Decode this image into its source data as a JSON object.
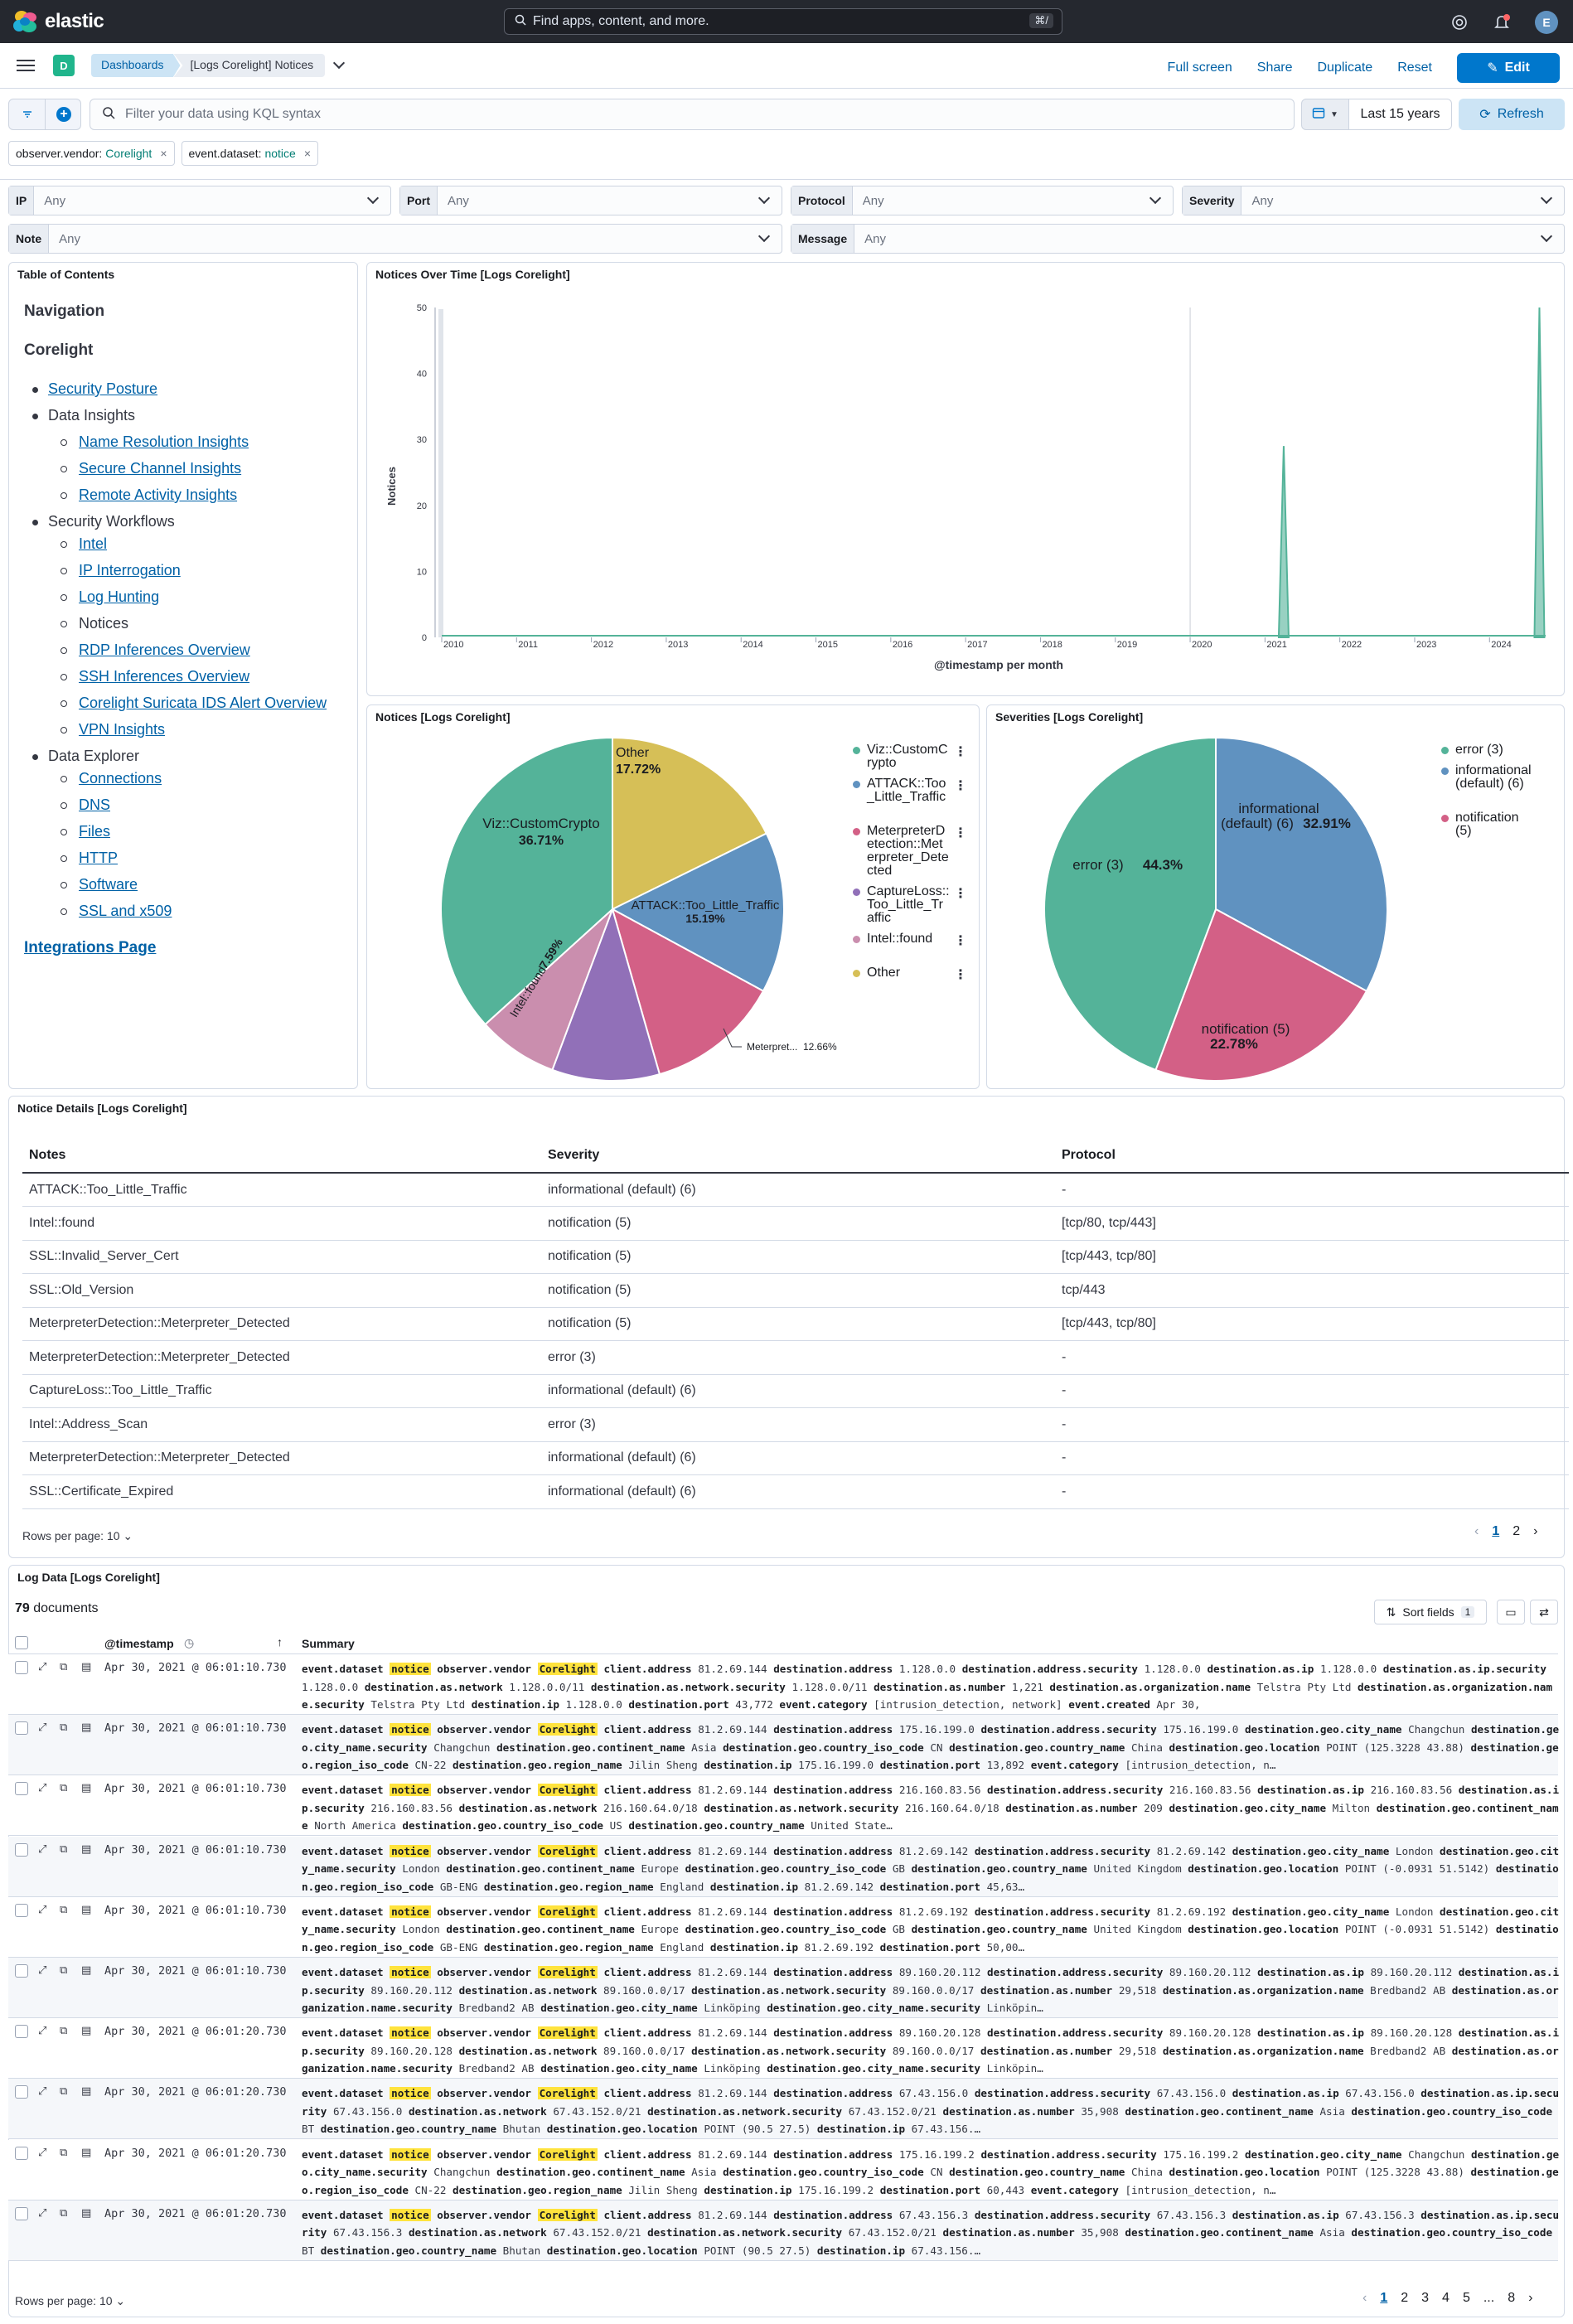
{
  "app": {
    "brand": "elastic",
    "search_placeholder": "Find apps, content, and more.",
    "search_shortcut": "⌘/",
    "avatar_initial": "E"
  },
  "header": {
    "space_badge": "D",
    "breadcrumbs": [
      "Dashboards",
      "[Logs Corelight] Notices"
    ],
    "actions": [
      "Full screen",
      "Share",
      "Duplicate",
      "Reset"
    ],
    "edit_label": "Edit"
  },
  "query": {
    "placeholder": "Filter your data using KQL syntax",
    "time_range": "Last 15 years",
    "refresh_label": "Refresh"
  },
  "filters": [
    {
      "field": "observer.vendor:",
      "value": "Corelight"
    },
    {
      "field": "event.dataset:",
      "value": "notice"
    }
  ],
  "controls": [
    {
      "label": "IP",
      "value": "Any"
    },
    {
      "label": "Port",
      "value": "Any"
    },
    {
      "label": "Protocol",
      "value": "Any"
    },
    {
      "label": "Severity",
      "value": "Any"
    },
    {
      "label": "Note",
      "value": "Any"
    },
    {
      "label": "Message",
      "value": "Any"
    }
  ],
  "toc": {
    "title": "Table of Contents",
    "heading1": "Navigation",
    "heading2": "Corelight",
    "security_posture": "Security Posture",
    "data_insights": "Data Insights",
    "data_insights_items": [
      "Name Resolution Insights",
      "Secure Channel Insights",
      "Remote Activity Insights"
    ],
    "security_workflows": "Security Workflows",
    "security_workflows_items": [
      "Intel",
      "IP Interrogation",
      "Log Hunting",
      "Notices",
      "RDP Inferences Overview",
      "SSH Inferences Overview",
      "Corelight Suricata IDS Alert Overview",
      "VPN Insights"
    ],
    "data_explorer": "Data Explorer",
    "data_explorer_items": [
      "Connections",
      "DNS",
      "Files",
      "HTTP",
      "Software",
      "SSL and x509"
    ],
    "integrations": "Integrations Page"
  },
  "chart_data": [
    {
      "type": "area",
      "title": "Notices Over Time [Logs Corelight]",
      "xlabel": "@timestamp per month",
      "ylabel": "Notices",
      "x_ticks": [
        "2010",
        "2011",
        "2012",
        "2013",
        "2014",
        "2015",
        "2016",
        "2017",
        "2018",
        "2019",
        "2020",
        "2021",
        "2022",
        "2023",
        "2024"
      ],
      "y_ticks": [
        0,
        10,
        20,
        30,
        40,
        50
      ],
      "ylim": [
        0,
        50
      ],
      "series": [
        {
          "x": [
            "2021-04",
            "2024-09"
          ],
          "values": [
            29,
            50
          ]
        }
      ],
      "color": "#54b399"
    },
    {
      "type": "pie",
      "title": "Notices [Logs Corelight]",
      "slices": [
        {
          "label": "Viz::CustomCrypto",
          "value": 36.71,
          "color": "#54b399"
        },
        {
          "label": "Other",
          "value": 17.72,
          "color": "#d6bf57"
        },
        {
          "label": "ATTACK::Too_Little_Traffic",
          "value": 15.19,
          "color": "#6092c0"
        },
        {
          "label": "MeterpreterDetection::Meterpreter_Detected",
          "value": 12.66,
          "color": "#d36086"
        },
        {
          "label": "CaptureLoss::Too_Little_Traffic",
          "value": 10.13,
          "color": "#9170b8"
        },
        {
          "label": "Intel::found",
          "value": 7.59,
          "color": "#ca8eae"
        }
      ],
      "slice_labels": {
        "custom": "Viz::CustomCrypto",
        "custom_pct": "36.71%",
        "other": "Other",
        "other_pct": "17.72%",
        "attack": "ATTACK::Too_Little_Traffic",
        "attack_pct": "15.19%",
        "intel": "Intel::found",
        "intel_pct": "7.59%",
        "meter": "Meterpret...",
        "meter_pct": "12.66%"
      },
      "legend": [
        "Viz::CustomCrypto",
        "ATTACK::Too_Little_Traffic",
        "MeterpreterDetection::Meterpreter_Detected",
        "CaptureLoss::Too_Little_Traffic",
        "Intel::found",
        "Other"
      ]
    },
    {
      "type": "pie",
      "title": "Severities [Logs Corelight]",
      "slices": [
        {
          "label": "error (3)",
          "value": 44.3,
          "color": "#54b399"
        },
        {
          "label": "informational (default) (6)",
          "value": 32.91,
          "color": "#6092c0"
        },
        {
          "label": "notification (5)",
          "value": 22.78,
          "color": "#d36086"
        }
      ],
      "slice_labels": {
        "error": "error (3)",
        "error_pct": "44.3%",
        "info1": "informational",
        "info2": "(default) (6)",
        "info_pct": "32.91%",
        "notif": "notification (5)",
        "notif_pct": "22.78%"
      },
      "legend": [
        "error (3)",
        "informational (default) (6)",
        "notification (5)"
      ]
    }
  ],
  "notice_details": {
    "title": "Notice Details [Logs Corelight]",
    "columns": [
      "Notes",
      "Severity",
      "Protocol"
    ],
    "rows": [
      [
        "ATTACK::Too_Little_Traffic",
        "informational (default) (6)",
        "-"
      ],
      [
        "Intel::found",
        "notification (5)",
        "[tcp/80, tcp/443]"
      ],
      [
        "SSL::Invalid_Server_Cert",
        "notification (5)",
        "[tcp/443, tcp/80]"
      ],
      [
        "SSL::Old_Version",
        "notification (5)",
        "tcp/443"
      ],
      [
        "MeterpreterDetection::Meterpreter_Detected",
        "notification (5)",
        "[tcp/443, tcp/80]"
      ],
      [
        "MeterpreterDetection::Meterpreter_Detected",
        "error (3)",
        "-"
      ],
      [
        "CaptureLoss::Too_Little_Traffic",
        "informational (default) (6)",
        "-"
      ],
      [
        "Intel::Address_Scan",
        "error (3)",
        "-"
      ],
      [
        "MeterpreterDetection::Meterpreter_Detected",
        "informational (default) (6)",
        "-"
      ],
      [
        "SSL::Certificate_Expired",
        "informational (default) (6)",
        "-"
      ]
    ],
    "rows_per_page": "Rows per page: 10",
    "pages": [
      "1",
      "2"
    ]
  },
  "log_data": {
    "title": "Log Data [Logs Corelight]",
    "doc_count": "79",
    "doc_label": "documents",
    "sort_label": "Sort fields",
    "sort_count": "1",
    "col_timestamp": "@timestamp",
    "col_summary": "Summary",
    "rows_per_page": "Rows per page: 10",
    "pages": [
      "1",
      "2",
      "3",
      "4",
      "5",
      "...",
      "8"
    ],
    "rows": [
      {
        "ts": "Apr 30, 2021 @ 06:01:10.730",
        "summary": "event.dataset notice observer.vendor Corelight client.address 81.2.69.144 destination.address 1.128.0.0 destination.address.security 1.128.0.0 destination.as.ip 1.128.0.0 destination.as.ip.security 1.128.0.0 destination.as.network 1.128.0.0/11 destination.as.network.security 1.128.0.0/11 destination.as.number 1,221 destination.as.organization.name Telstra Pty Ltd destination.as.organization.name.security Telstra Pty Ltd destination.ip 1.128.0.0 destination.port 43,772 event.category [intrusion_detection, network] event.created Apr 30,"
      },
      {
        "ts": "Apr 30, 2021 @ 06:01:10.730",
        "summary": "event.dataset notice observer.vendor Corelight client.address 81.2.69.144 destination.address 175.16.199.0 destination.address.security 175.16.199.0 destination.geo.city_name Changchun destination.geo.city_name.security Changchun destination.geo.continent_name Asia destination.geo.country_iso_code CN destination.geo.country_name China destination.geo.location POINT (125.3228 43.88) destination.geo.region_iso_code CN-22 destination.geo.region_name Jilin Sheng destination.ip 175.16.199.0 destination.port 13,892 event.category [intrusion_detection, n…"
      },
      {
        "ts": "Apr 30, 2021 @ 06:01:10.730",
        "summary": "event.dataset notice observer.vendor Corelight client.address 81.2.69.144 destination.address 216.160.83.56 destination.address.security 216.160.83.56 destination.as.ip 216.160.83.56 destination.as.ip.security 216.160.83.56 destination.as.network 216.160.64.0/18 destination.as.network.security 216.160.64.0/18 destination.as.number 209 destination.geo.city_name Milton destination.geo.continent_name North America destination.geo.country_iso_code US destination.geo.country_name United State…"
      },
      {
        "ts": "Apr 30, 2021 @ 06:01:10.730",
        "summary": "event.dataset notice observer.vendor Corelight client.address 81.2.69.144 destination.address 81.2.69.142 destination.address.security 81.2.69.142 destination.geo.city_name London destination.geo.city_name.security London destination.geo.continent_name Europe destination.geo.country_iso_code GB destination.geo.country_name United Kingdom destination.geo.location POINT (-0.0931 51.5142) destination.geo.region_iso_code GB-ENG destination.geo.region_name England destination.ip 81.2.69.142 destination.port 45,63…"
      },
      {
        "ts": "Apr 30, 2021 @ 06:01:10.730",
        "summary": "event.dataset notice observer.vendor Corelight client.address 81.2.69.144 destination.address 81.2.69.192 destination.address.security 81.2.69.192 destination.geo.city_name London destination.geo.city_name.security London destination.geo.continent_name Europe destination.geo.country_iso_code GB destination.geo.country_name United Kingdom destination.geo.location POINT (-0.0931 51.5142) destination.geo.region_iso_code GB-ENG destination.geo.region_name England destination.ip 81.2.69.192 destination.port 50,00…"
      },
      {
        "ts": "Apr 30, 2021 @ 06:01:10.730",
        "summary": "event.dataset notice observer.vendor Corelight client.address 81.2.69.144 destination.address 89.160.20.112 destination.address.security 89.160.20.112 destination.as.ip 89.160.20.112 destination.as.ip.security 89.160.20.112 destination.as.network 89.160.0.0/17 destination.as.network.security 89.160.0.0/17 destination.as.number 29,518 destination.as.organization.name Bredband2 AB destination.as.organization.name.security Bredband2 AB destination.geo.city_name Linköping destination.geo.city_name.security Linköpin…"
      },
      {
        "ts": "Apr 30, 2021 @ 06:01:20.730",
        "summary": "event.dataset notice observer.vendor Corelight client.address 81.2.69.144 destination.address 89.160.20.128 destination.address.security 89.160.20.128 destination.as.ip 89.160.20.128 destination.as.ip.security 89.160.20.128 destination.as.network 89.160.0.0/17 destination.as.network.security 89.160.0.0/17 destination.as.number 29,518 destination.as.organization.name Bredband2 AB destination.as.organization.name.security Bredband2 AB destination.geo.city_name Linköping destination.geo.city_name.security Linköpin…"
      },
      {
        "ts": "Apr 30, 2021 @ 06:01:20.730",
        "summary": "event.dataset notice observer.vendor Corelight client.address 81.2.69.144 destination.address 67.43.156.0 destination.address.security 67.43.156.0 destination.as.ip 67.43.156.0 destination.as.ip.security 67.43.156.0 destination.as.network 67.43.152.0/21 destination.as.network.security 67.43.152.0/21 destination.as.number 35,908 destination.geo.continent_name Asia destination.geo.country_iso_code BT destination.geo.country_name Bhutan destination.geo.location POINT (90.5 27.5) destination.ip 67.43.156.…"
      },
      {
        "ts": "Apr 30, 2021 @ 06:01:20.730",
        "summary": "event.dataset notice observer.vendor Corelight client.address 81.2.69.144 destination.address 175.16.199.2 destination.address.security 175.16.199.2 destination.geo.city_name Changchun destination.geo.city_name.security Changchun destination.geo.continent_name Asia destination.geo.country_iso_code CN destination.geo.country_name China destination.geo.location POINT (125.3228 43.88) destination.geo.region_iso_code CN-22 destination.geo.region_name Jilin Sheng destination.ip 175.16.199.2 destination.port 60,443 event.category [intrusion_detection, n…"
      },
      {
        "ts": "Apr 30, 2021 @ 06:01:20.730",
        "summary": "event.dataset notice observer.vendor Corelight client.address 81.2.69.144 destination.address 67.43.156.3 destination.address.security 67.43.156.3 destination.as.ip 67.43.156.3 destination.as.ip.security 67.43.156.3 destination.as.network 67.43.152.0/21 destination.as.network.security 67.43.152.0/21 destination.as.number 35,908 destination.geo.continent_name Asia destination.geo.country_iso_code BT destination.geo.country_name Bhutan destination.geo.location POINT (90.5 27.5) destination.ip 67.43.156.…"
      }
    ]
  }
}
